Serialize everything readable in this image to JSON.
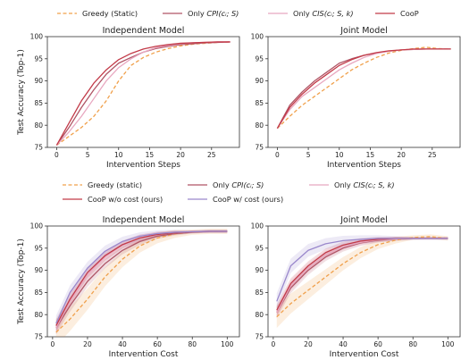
{
  "chart_data": [
    {
      "type": "line",
      "title": "Independent Model",
      "xlabel": "Intervention Steps",
      "ylabel": "Test Accuracy (Top-1)",
      "xlim": [
        -1.5,
        29.5
      ],
      "ylim": [
        75,
        100
      ],
      "xticks": [
        0,
        5,
        10,
        15,
        20,
        25
      ],
      "yticks": [
        75,
        80,
        85,
        90,
        95,
        100
      ],
      "series": [
        {
          "name": "Greedy (Static)",
          "style": "dashed",
          "color": "#f0a04b",
          "x": [
            0,
            2,
            4,
            6,
            8,
            10,
            12,
            14,
            16,
            18,
            20,
            22,
            24,
            26,
            28
          ],
          "y": [
            75.5,
            77.5,
            79.5,
            82.0,
            85.5,
            90.0,
            93.5,
            95.3,
            96.5,
            97.3,
            97.9,
            98.3,
            98.5,
            98.7,
            98.8
          ]
        },
        {
          "name": "Only CPI(c_i; S)",
          "style": "solid",
          "color": "#b05566",
          "x": [
            0,
            2,
            4,
            6,
            8,
            10,
            12,
            14,
            16,
            18,
            20,
            22,
            24,
            26,
            28
          ],
          "y": [
            75.5,
            79.5,
            84.0,
            88.0,
            91.5,
            94.0,
            95.3,
            96.5,
            97.3,
            97.8,
            98.2,
            98.4,
            98.6,
            98.7,
            98.8
          ]
        },
        {
          "name": "Only CIS(c_i; S, k)",
          "style": "solid",
          "color": "#e8a8c0",
          "x": [
            0,
            2,
            4,
            6,
            8,
            10,
            12,
            14,
            16,
            18,
            20,
            22,
            24,
            26,
            28
          ],
          "y": [
            75.5,
            78.5,
            82.0,
            86.0,
            90.0,
            93.0,
            95.0,
            96.5,
            97.5,
            98.0,
            98.4,
            98.6,
            98.7,
            98.8,
            98.8
          ]
        },
        {
          "name": "CooP",
          "style": "solid",
          "color": "#c23a48",
          "x": [
            0,
            2,
            4,
            6,
            8,
            10,
            12,
            14,
            16,
            18,
            20,
            22,
            24,
            26,
            28
          ],
          "y": [
            75.5,
            80.5,
            85.5,
            89.5,
            92.5,
            94.8,
            96.2,
            97.2,
            97.8,
            98.2,
            98.5,
            98.6,
            98.7,
            98.8,
            98.8
          ]
        }
      ]
    },
    {
      "type": "line",
      "title": "Joint Model",
      "xlabel": "Intervention Steps",
      "ylabel": "",
      "xlim": [
        -1.5,
        29.5
      ],
      "ylim": [
        75,
        100
      ],
      "xticks": [
        0,
        5,
        10,
        15,
        20,
        25
      ],
      "yticks": [
        75,
        80,
        85,
        90,
        95,
        100
      ],
      "series": [
        {
          "name": "Greedy (Static)",
          "style": "dashed",
          "color": "#f0a04b",
          "x": [
            0,
            2,
            4,
            6,
            8,
            10,
            12,
            14,
            16,
            18,
            20,
            22,
            24,
            26,
            28
          ],
          "y": [
            79.3,
            82.0,
            84.5,
            86.5,
            88.5,
            90.5,
            92.5,
            94.0,
            95.3,
            96.3,
            96.9,
            97.3,
            97.6,
            97.3,
            97.2
          ]
        },
        {
          "name": "Only CPI(c_i; S)",
          "style": "solid",
          "color": "#b05566",
          "x": [
            0,
            2,
            4,
            6,
            8,
            10,
            12,
            14,
            16,
            18,
            20,
            22,
            24,
            26,
            28
          ],
          "y": [
            79.3,
            84.5,
            87.5,
            90.0,
            92.0,
            94.0,
            95.0,
            95.8,
            96.3,
            96.7,
            97.0,
            97.1,
            97.2,
            97.2,
            97.2
          ]
        },
        {
          "name": "Only CIS(c_i; S, k)",
          "style": "solid",
          "color": "#e8a8c0",
          "x": [
            0,
            2,
            4,
            6,
            8,
            10,
            12,
            14,
            16,
            18,
            20,
            22,
            24,
            26,
            28
          ],
          "y": [
            79.3,
            83.5,
            86.5,
            88.5,
            90.5,
            92.5,
            94.0,
            95.3,
            96.2,
            96.7,
            97.0,
            97.1,
            97.2,
            97.2,
            97.2
          ]
        },
        {
          "name": "CooP",
          "style": "solid",
          "color": "#c23a48",
          "x": [
            0,
            2,
            4,
            6,
            8,
            10,
            12,
            14,
            16,
            18,
            20,
            22,
            24,
            26,
            28
          ],
          "y": [
            79.3,
            84.0,
            87.0,
            89.5,
            91.5,
            93.5,
            94.8,
            95.8,
            96.4,
            96.8,
            97.0,
            97.2,
            97.2,
            97.2,
            97.2
          ]
        }
      ]
    },
    {
      "type": "line",
      "title": "Independent Model",
      "xlabel": "Intervention Cost",
      "ylabel": "Test Accuracy (Top-1)",
      "xlim": [
        -3,
        107
      ],
      "ylim": [
        75,
        100
      ],
      "xticks": [
        0,
        20,
        40,
        60,
        80,
        100
      ],
      "yticks": [
        75,
        80,
        85,
        90,
        95,
        100
      ],
      "series": [
        {
          "name": "Greedy (static)",
          "style": "dashed",
          "color": "#f0a04b",
          "band": 3.0,
          "x": [
            2,
            10,
            20,
            30,
            40,
            50,
            60,
            70,
            80,
            90,
            100
          ],
          "y": [
            76.0,
            79.0,
            83.5,
            88.5,
            92.5,
            95.5,
            97.3,
            98.2,
            98.6,
            98.8,
            98.8
          ]
        },
        {
          "name": "Only CPI(c_i; S)",
          "style": "solid",
          "color": "#b05566",
          "band": 1.5,
          "x": [
            2,
            10,
            20,
            30,
            40,
            50,
            60,
            70,
            80,
            90,
            100
          ],
          "y": [
            77.0,
            82.0,
            87.5,
            91.5,
            94.5,
            96.5,
            97.7,
            98.3,
            98.6,
            98.8,
            98.8
          ]
        },
        {
          "name": "Only CIS(c_i; S, k)",
          "style": "solid",
          "color": "#e8a8c0",
          "band": 1.5,
          "x": [
            2,
            10,
            20,
            30,
            40,
            50,
            60,
            70,
            80,
            90,
            100
          ],
          "y": [
            77.0,
            83.0,
            89.0,
            93.0,
            95.7,
            97.3,
            98.1,
            98.5,
            98.7,
            98.8,
            98.8
          ]
        },
        {
          "name": "CooP w/o cost (ours)",
          "style": "solid",
          "color": "#c23a48",
          "band": 1.5,
          "x": [
            2,
            10,
            20,
            30,
            40,
            50,
            60,
            70,
            80,
            90,
            100
          ],
          "y": [
            77.5,
            83.5,
            89.5,
            93.3,
            95.8,
            97.3,
            98.1,
            98.5,
            98.7,
            98.8,
            98.8
          ]
        },
        {
          "name": "CooP w/ cost (ours)",
          "style": "solid",
          "color": "#9a88cc",
          "band": 1.8,
          "x": [
            2,
            10,
            20,
            30,
            40,
            50,
            60,
            70,
            80,
            90,
            100
          ],
          "y": [
            78.0,
            85.0,
            90.5,
            94.3,
            96.5,
            97.7,
            98.3,
            98.6,
            98.7,
            98.8,
            98.8
          ]
        }
      ]
    },
    {
      "type": "line",
      "title": "Joint Model",
      "xlabel": "Intervention Cost",
      "ylabel": "",
      "xlim": [
        -3,
        107
      ],
      "ylim": [
        75,
        100
      ],
      "xticks": [
        0,
        20,
        40,
        60,
        80,
        100
      ],
      "yticks": [
        75,
        80,
        85,
        90,
        95,
        100
      ],
      "series": [
        {
          "name": "Greedy (static)",
          "style": "dashed",
          "color": "#f0a04b",
          "band": 2.5,
          "x": [
            2,
            10,
            20,
            30,
            40,
            50,
            60,
            70,
            80,
            90,
            100
          ],
          "y": [
            79.5,
            82.5,
            85.5,
            88.5,
            91.5,
            94.0,
            95.8,
            96.8,
            97.4,
            97.6,
            97.2
          ]
        },
        {
          "name": "Only CPI(c_i; S)",
          "style": "solid",
          "color": "#b05566",
          "band": 1.3,
          "x": [
            2,
            10,
            20,
            30,
            40,
            50,
            60,
            70,
            80,
            90,
            100
          ],
          "y": [
            80.5,
            86.0,
            90.0,
            93.0,
            95.0,
            96.2,
            96.8,
            97.1,
            97.2,
            97.2,
            97.2
          ]
        },
        {
          "name": "Only CIS(c_i; S, k)",
          "style": "solid",
          "color": "#e8a8c0",
          "band": 1.3,
          "x": [
            2,
            10,
            20,
            30,
            40,
            50,
            60,
            70,
            80,
            90,
            100
          ],
          "y": [
            80.5,
            86.5,
            90.5,
            93.5,
            95.3,
            96.3,
            96.9,
            97.1,
            97.2,
            97.2,
            97.2
          ]
        },
        {
          "name": "CooP w/o cost (ours)",
          "style": "solid",
          "color": "#c23a48",
          "band": 1.3,
          "x": [
            2,
            10,
            20,
            30,
            40,
            50,
            60,
            70,
            80,
            90,
            100
          ],
          "y": [
            81.0,
            87.0,
            91.0,
            94.0,
            95.7,
            96.6,
            97.0,
            97.2,
            97.2,
            97.2,
            97.2
          ]
        },
        {
          "name": "CooP w/ cost (ours)",
          "style": "solid",
          "color": "#9a88cc",
          "band": 1.8,
          "x": [
            2,
            10,
            20,
            30,
            40,
            50,
            60,
            70,
            80,
            90,
            100
          ],
          "y": [
            83.0,
            91.0,
            94.5,
            96.0,
            96.7,
            97.0,
            97.2,
            97.2,
            97.2,
            97.2,
            97.2
          ]
        }
      ]
    }
  ],
  "legends": {
    "top": {
      "items": [
        {
          "label": "Greedy (Static)",
          "pre": "",
          "math": "",
          "post": ""
        },
        {
          "label": "",
          "pre": "Only ",
          "math": "CPI",
          "post": "(cᵢ; S)"
        },
        {
          "label": "",
          "pre": "Only ",
          "math": "CIS",
          "post": "(cᵢ; S, k)"
        },
        {
          "label": "CooP",
          "pre": "",
          "math": "",
          "post": ""
        }
      ]
    },
    "bottom": {
      "items": [
        {
          "label": "Greedy (static)",
          "pre": "",
          "math": "",
          "post": ""
        },
        {
          "label": "",
          "pre": "Only ",
          "math": "CPI",
          "post": "(cᵢ; S)"
        },
        {
          "label": "",
          "pre": "Only ",
          "math": "CIS",
          "post": "(cᵢ; S, k)"
        },
        {
          "label": "CooP w/o cost (ours)",
          "pre": "",
          "math": "",
          "post": ""
        },
        {
          "label": "CooP w/ cost (ours)",
          "pre": "",
          "math": "",
          "post": ""
        }
      ]
    }
  }
}
